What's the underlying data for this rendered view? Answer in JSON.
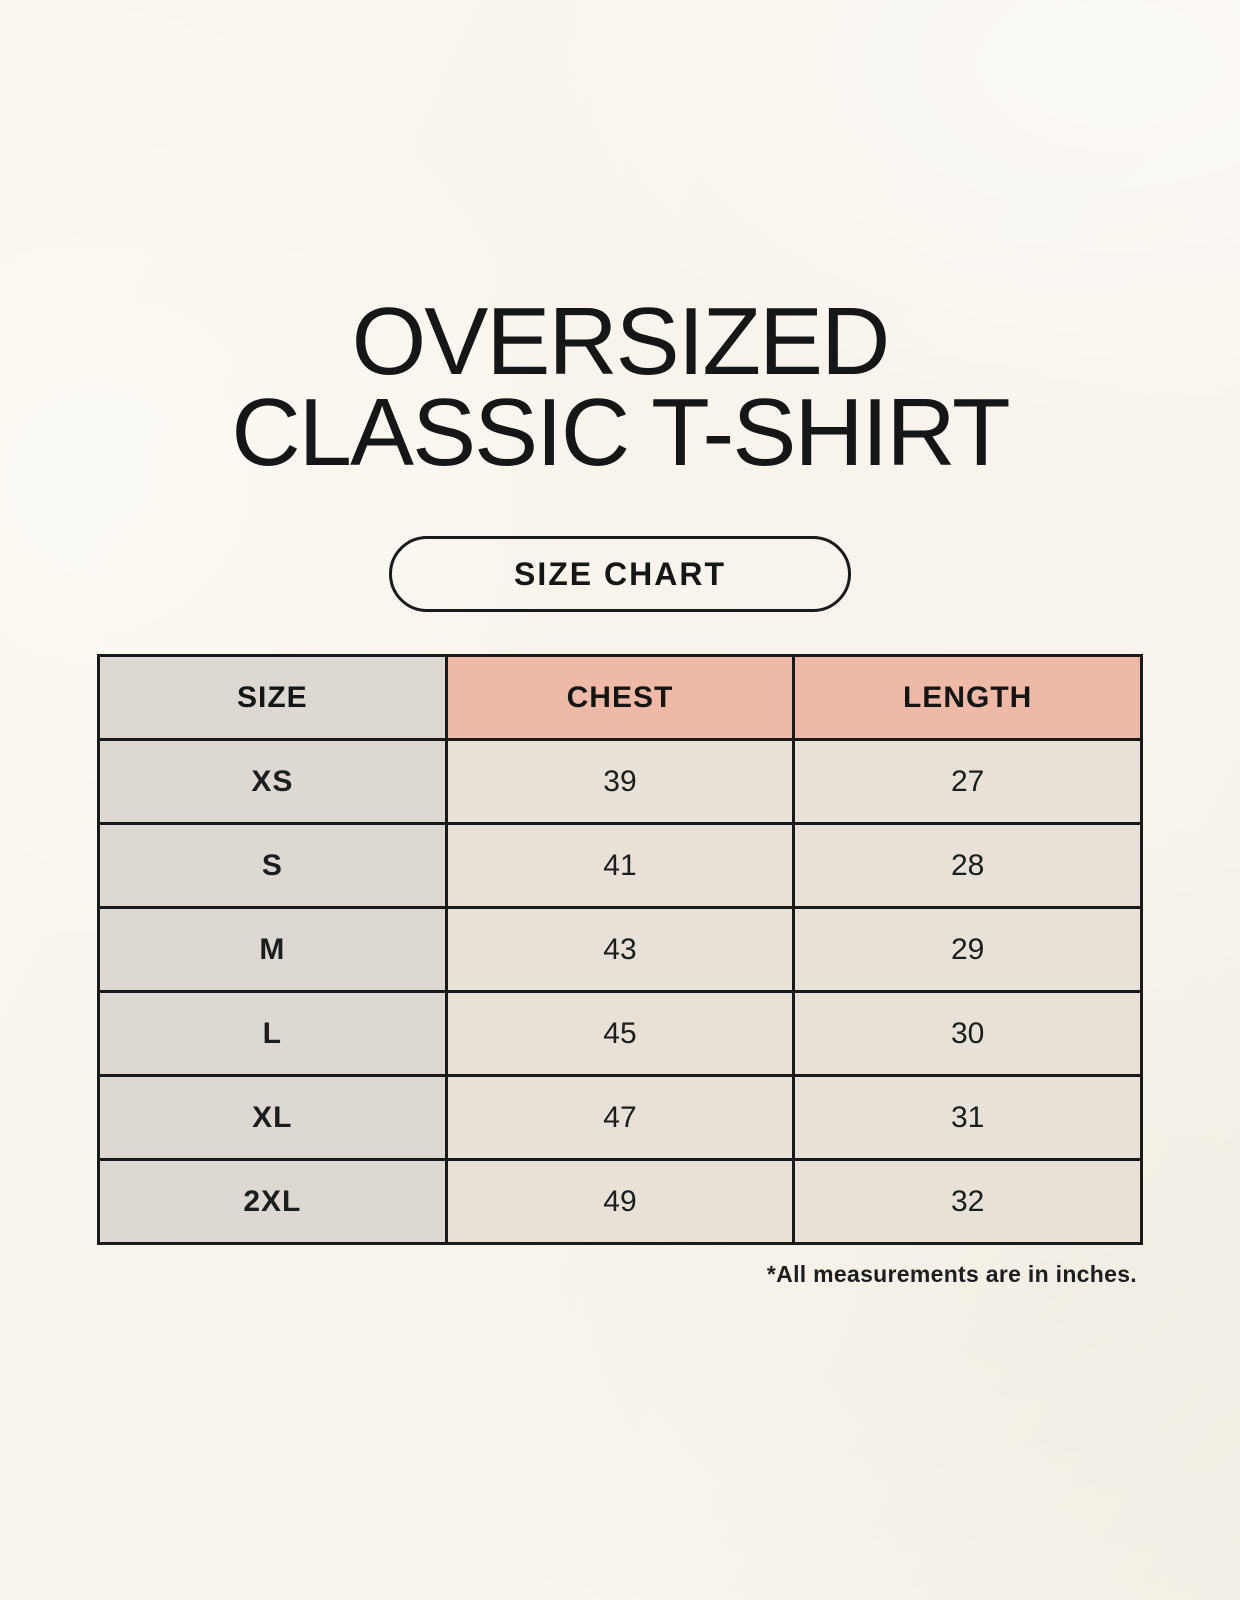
{
  "page": {
    "title_line1": "OVERSIZED",
    "title_line2": "CLASSIC T-SHIRT",
    "size_chart_button": "SIZE CHART",
    "footnote": "*All measurements are in inches."
  },
  "table": {
    "headers": [
      "SIZE",
      "CHEST",
      "LENGTH"
    ],
    "rows": [
      {
        "size": "XS",
        "chest": "39",
        "length": "27"
      },
      {
        "size": "S",
        "chest": "41",
        "length": "28"
      },
      {
        "size": "M",
        "chest": "43",
        "length": "29"
      },
      {
        "size": "L",
        "chest": "45",
        "length": "30"
      },
      {
        "size": "XL",
        "chest": "47",
        "length": "31"
      },
      {
        "size": "2XL",
        "chest": "49",
        "length": "32"
      }
    ]
  },
  "chart_data": {
    "type": "table",
    "title": "OVERSIZED CLASSIC T-SHIRT size chart",
    "columns": [
      "SIZE",
      "CHEST",
      "LENGTH"
    ],
    "rows": [
      [
        "XS",
        39,
        27
      ],
      [
        "S",
        41,
        28
      ],
      [
        "M",
        43,
        29
      ],
      [
        "L",
        45,
        30
      ],
      [
        "XL",
        47,
        31
      ],
      [
        "2XL",
        49,
        32
      ]
    ],
    "units": "inches"
  },
  "colors": {
    "background": "#f8f4ec",
    "size_column_bg": "#ddd8d2",
    "measure_header_bg": "#eeb9a6",
    "data_cell_bg": "#e7e1d7",
    "border": "#1a1a1a",
    "text": "#161616"
  }
}
